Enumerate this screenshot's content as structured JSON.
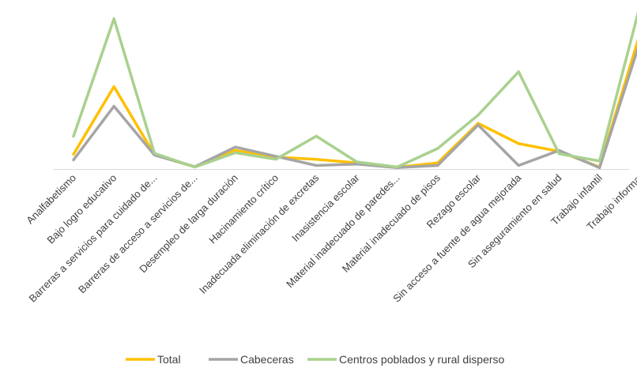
{
  "chart_data": {
    "type": "line",
    "title": "",
    "xlabel": "",
    "ylabel": "",
    "categories": [
      "Analfabetismo",
      "Bajo logro educativo",
      "Barreras a servicios para cuidado de...",
      "Barreras de acceso a servicios de...",
      "Desempleo de larga duración",
      "Hacinamiento crítico",
      "Inadecuada eliminación de excretas",
      "Inasistencia escolar",
      "Material inadecuado de paredes...",
      "Material inadecuado de pisos",
      "Rezago escolar",
      "Sin acceso a fuente de agua mejorada",
      "Sin aseguramiento en salud",
      "Trabajo infantil",
      "Trabajo informal"
    ],
    "series": [
      {
        "name": "Total",
        "color": "#FFC000",
        "values": [
          8.3,
          46.6,
          8.1,
          1.2,
          10.6,
          6.7,
          5.5,
          3.5,
          1.0,
          3.5,
          25.8,
          14.4,
          10.0,
          1.1,
          76.6
        ]
      },
      {
        "name": "Cabeceras",
        "color": "#A5A5A5",
        "values": [
          5.2,
          35.5,
          7.9,
          1.3,
          12.4,
          7.2,
          2.0,
          2.8,
          0.8,
          2.0,
          24.9,
          2.0,
          10.5,
          0.7,
          72.0
        ]
      },
      {
        "name": "Centros poblados y rural disperso",
        "color": "#A9D18E",
        "values": [
          18.5,
          85.0,
          8.9,
          1.1,
          9.2,
          5.5,
          18.6,
          4.0,
          1.1,
          11.6,
          30.5,
          55.0,
          8.6,
          4.5,
          92.5
        ]
      }
    ],
    "ylim": [
      0,
      92
    ],
    "grid": false,
    "legend": "bottom"
  }
}
